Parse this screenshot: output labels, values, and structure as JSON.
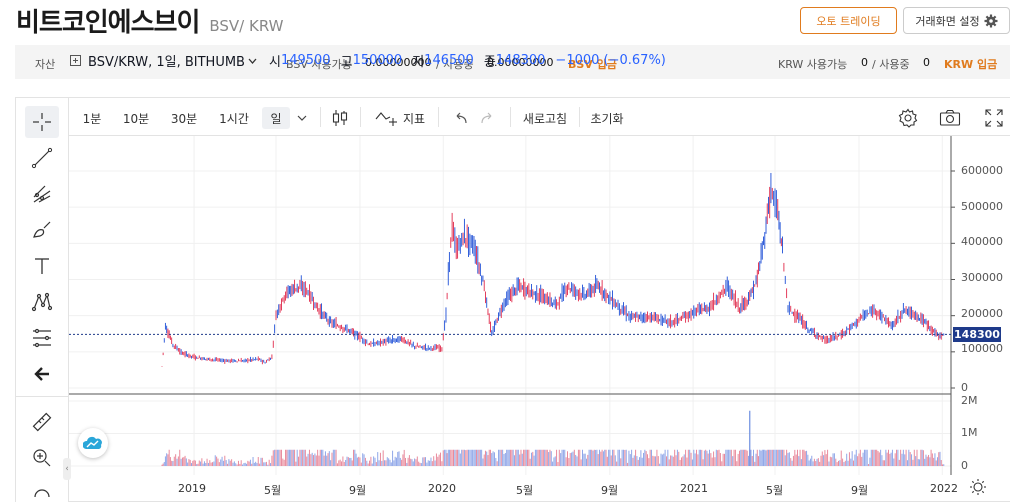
{
  "header": {
    "coin_name": "비트코인에스브이",
    "pair": "BSV/ KRW",
    "auto_trade_label": "오토 트레이딩",
    "settings_label": "거래화면 설정"
  },
  "balance": {
    "asset_label": "자산",
    "bsv_available_label": "BSV 사용가능",
    "bsv_available": "0.00000000",
    "bsv_in_use_label": "/ 사용중",
    "bsv_in_use": "0.00000000",
    "bsv_deposit_label": "BSV 입금",
    "krw_available_label": "KRW 사용가능",
    "krw_available": "0",
    "krw_in_use_label": "/ 사용중",
    "krw_in_use": "0",
    "krw_deposit_label": "KRW 입금"
  },
  "toolbar": {
    "intervals": [
      "1분",
      "10분",
      "30분",
      "1시간",
      "일"
    ],
    "selected_interval": "일",
    "indicator_label": "지표",
    "refresh_label": "새로고침",
    "reset_label": "초기화"
  },
  "legend": {
    "symbol": "BSV/KRW, 1일, BITHUMB",
    "open_label": "시",
    "open": "149500",
    "high_label": "고",
    "high": "150000",
    "low_label": "저",
    "low": "146500",
    "close_label": "종",
    "close": "148300",
    "change": "−1000 (−0.67%)"
  },
  "price_axis": {
    "ticks": [
      "600000",
      "500000",
      "400000",
      "300000",
      "200000",
      "100000",
      "0"
    ],
    "last_price": "148300",
    "last_price_color": "#1e3a8a"
  },
  "volume_axis": {
    "ticks": [
      "2M",
      "1M",
      "0"
    ]
  },
  "time_axis": {
    "labels": [
      "2019",
      "5월",
      "9월",
      "2020",
      "5월",
      "9월",
      "2021",
      "5월",
      "9월",
      "2022"
    ]
  },
  "colors": {
    "accent": "#e07b1e",
    "up": "#e0294a",
    "down": "#1e4fd6",
    "blue_text": "#2962ff"
  },
  "chart_data": {
    "type": "line",
    "title": "",
    "x": [
      "2018-11-15",
      "2018-11-20",
      "2018-12-01",
      "2018-12-15",
      "2019-01-01",
      "2019-01-20",
      "2019-02-15",
      "2019-03-15",
      "2019-04-05",
      "2019-04-15",
      "2019-04-25",
      "2019-05-01",
      "2019-05-15",
      "2019-06-01",
      "2019-06-15",
      "2019-07-01",
      "2019-07-20",
      "2019-08-15",
      "2019-09-01",
      "2019-09-15",
      "2019-10-15",
      "2019-11-01",
      "2019-11-20",
      "2019-12-10",
      "2019-12-30",
      "2020-01-05",
      "2020-01-10",
      "2020-01-14",
      "2020-01-20",
      "2020-02-01",
      "2020-02-15",
      "2020-03-01",
      "2020-03-12",
      "2020-03-20",
      "2020-04-01",
      "2020-04-20",
      "2020-05-15",
      "2020-06-15",
      "2020-07-01",
      "2020-07-25",
      "2020-08-15",
      "2020-09-05",
      "2020-10-01",
      "2020-11-01",
      "2020-12-01",
      "2020-12-25",
      "2021-01-10",
      "2021-01-25",
      "2021-02-20",
      "2021-03-10",
      "2021-03-25",
      "2021-04-05",
      "2021-04-16",
      "2021-04-25",
      "2021-05-05",
      "2021-05-12",
      "2021-05-20",
      "2021-06-01",
      "2021-06-20",
      "2021-07-15",
      "2021-08-10",
      "2021-09-05",
      "2021-09-25",
      "2021-10-20",
      "2021-11-05",
      "2021-11-25",
      "2021-12-10",
      "2021-12-25",
      "2022-01-05"
    ],
    "series": [
      {
        "values": [
          60000,
          170000,
          120000,
          95000,
          85000,
          80000,
          75000,
          75000,
          80000,
          70000,
          85000,
          200000,
          260000,
          280000,
          270000,
          220000,
          180000,
          160000,
          140000,
          120000,
          130000,
          135000,
          115000,
          110000,
          110000,
          200000,
          360000,
          440000,
          380000,
          420000,
          390000,
          280000,
          145000,
          190000,
          240000,
          280000,
          260000,
          230000,
          280000,
          255000,
          280000,
          240000,
          195000,
          195000,
          180000,
          200000,
          215000,
          220000,
          280000,
          220000,
          250000,
          300000,
          420000,
          550000,
          480000,
          380000,
          220000,
          200000,
          160000,
          130000,
          150000,
          195000,
          215000,
          170000,
          215000,
          200000,
          175000,
          145000,
          145000
        ]
      }
    ],
    "ylim": [
      0,
      650000
    ],
    "volume": {
      "ylim": [
        0,
        2000000
      ],
      "spike": {
        "x": "2021-03-25",
        "value": 1700000
      }
    },
    "last_price": 148300,
    "grid": true
  }
}
